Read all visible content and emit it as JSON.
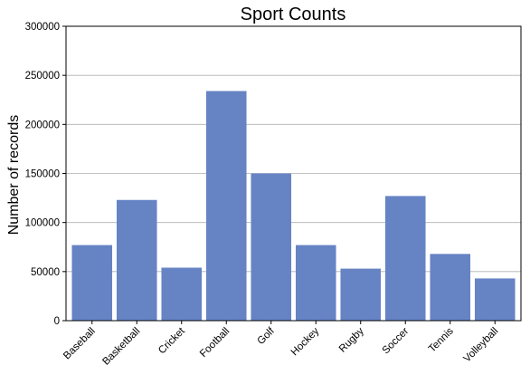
{
  "chart_data": {
    "type": "bar",
    "title": "Sport Counts",
    "xlabel": "",
    "ylabel": "Number of records",
    "categories": [
      "Baseball",
      "Basketball",
      "Cricket",
      "Football",
      "Golf",
      "Hockey",
      "Rugby",
      "Soccer",
      "Tennis",
      "Volleyball"
    ],
    "values": [
      77000,
      123000,
      54000,
      234000,
      150000,
      77000,
      53000,
      127000,
      68000,
      43000
    ],
    "ylim": [
      0,
      300000
    ],
    "yticks": [
      0,
      50000,
      100000,
      150000,
      200000,
      250000,
      300000
    ],
    "grid": "y",
    "legend": "none",
    "bar_color": "#6683c4"
  }
}
